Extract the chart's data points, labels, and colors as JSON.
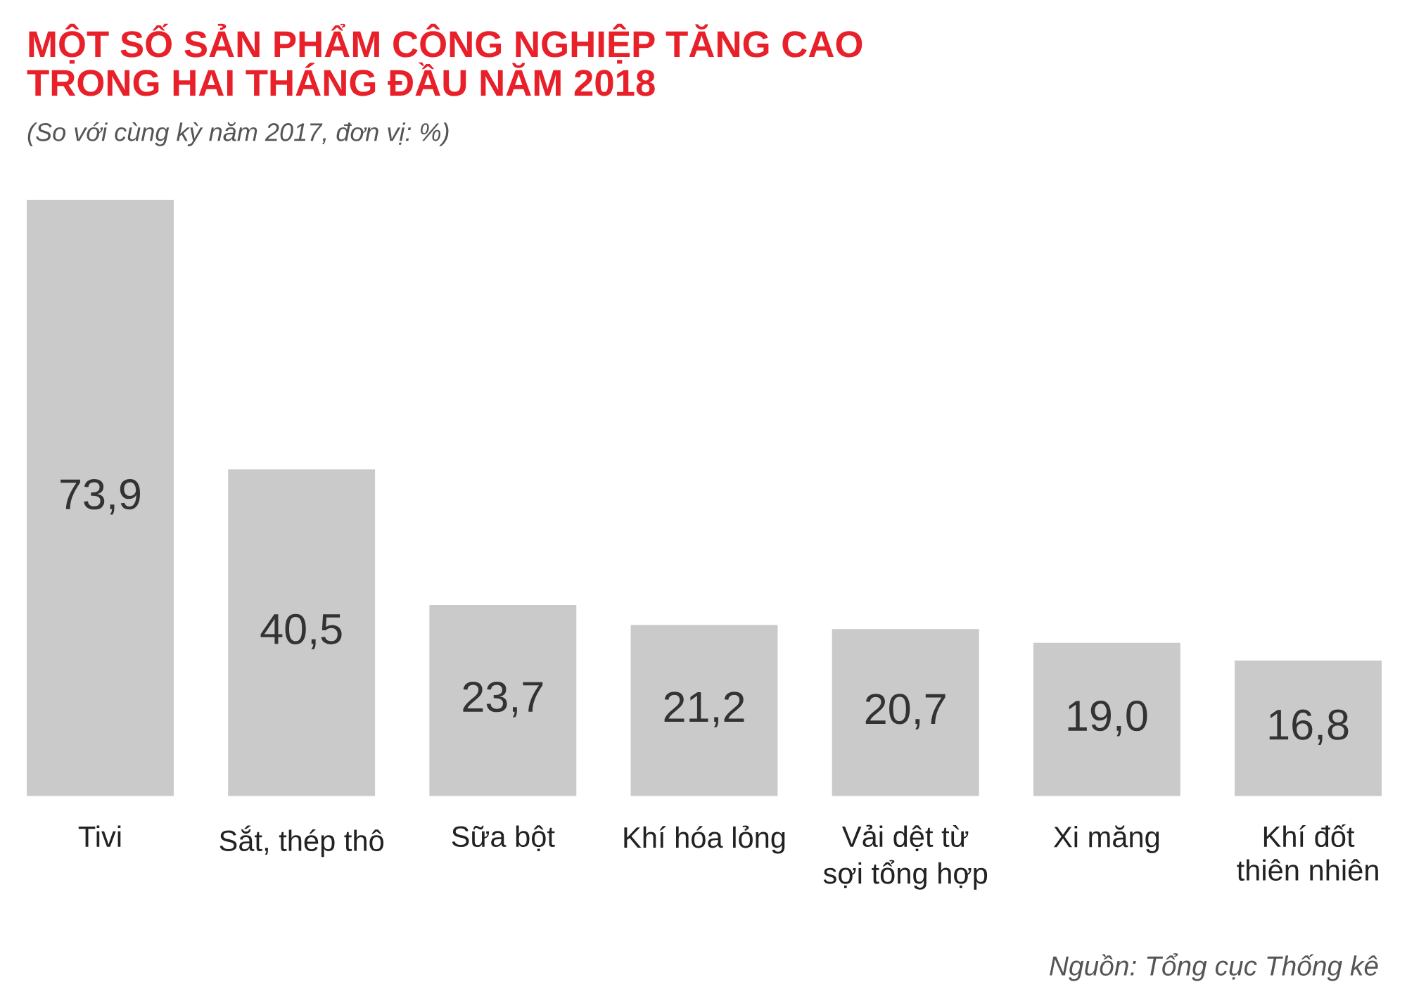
{
  "chart_data": {
    "type": "bar",
    "title": "MỘT SỐ SẢN PHẨM CÔNG NGHIỆP TĂNG CAO\nTRONG HAI THÁNG ĐẦU NĂM 2018",
    "subtitle": "(So với cùng kỳ năm 2017, đơn vị: %)",
    "categories": [
      "Tivi",
      "Sắt, thép thô",
      "Sữa bột",
      "Khí hóa lỏng",
      "Vải dệt từ\nsợi tổng hợp",
      "Xi măng",
      "Khí đốt\nthiên nhiên"
    ],
    "values": [
      73.9,
      40.5,
      23.7,
      21.2,
      20.7,
      19.0,
      16.8
    ],
    "value_labels": [
      "73,9",
      "40,5",
      "23,7",
      "21,2",
      "20,7",
      "19,0",
      "16,8"
    ],
    "color": "#cbcacb",
    "grid": false,
    "annotations": [
      "Nguồn: Tổng cục Thống kê"
    ]
  }
}
